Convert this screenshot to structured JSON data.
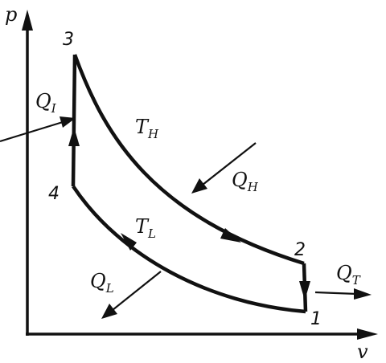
{
  "axes": {
    "y_label": "p",
    "x_label": "v"
  },
  "points": {
    "p1": "1",
    "p2": "2",
    "p3": "3",
    "p4": "4"
  },
  "isotherms": {
    "hot": {
      "main": "T",
      "sub": "H"
    },
    "cold": {
      "main": "T",
      "sub": "L"
    }
  },
  "heat_flows": {
    "q_i": {
      "main": "Q",
      "sub": "I"
    },
    "q_h": {
      "main": "Q",
      "sub": "H"
    },
    "q_t": {
      "main": "Q",
      "sub": "T"
    },
    "q_l": {
      "main": "Q",
      "sub": "L"
    }
  }
}
